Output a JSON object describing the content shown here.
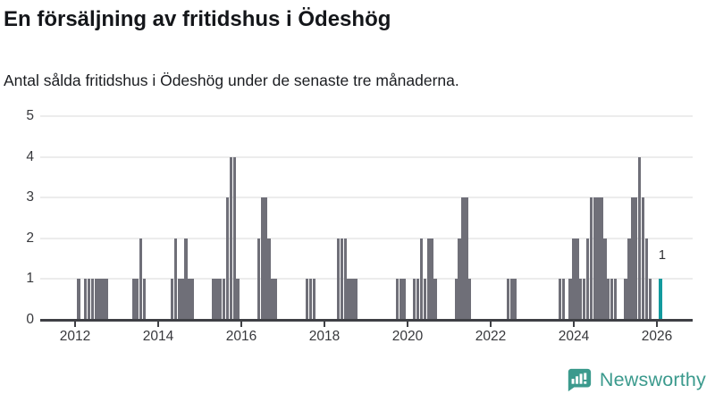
{
  "header": {
    "title": "En försäljning av fritidshus i Ödeshög",
    "subtitle": "Antal sålda fritidshus i Ödeshög under de senaste tre månaderna."
  },
  "chart_data": {
    "type": "bar",
    "title": "En försäljning av fritidshus i Ödeshög",
    "subtitle": "Antal sålda fritidshus i Ödeshög under de senaste tre månaderna.",
    "frequency": "monthly",
    "xlabel": "",
    "ylabel": "",
    "ylim": [
      0,
      5
    ],
    "yticks": [
      0,
      1,
      2,
      3,
      4,
      5
    ],
    "xticks": [
      2012,
      2014,
      2016,
      2020,
      2018,
      2022,
      2024,
      2026
    ],
    "grid": "horizontal",
    "legend": "none",
    "bar_color": "#6F6F78",
    "highlight_color": "#129A9E",
    "highlight_date": "2026-02",
    "annotation": {
      "text": "1",
      "date": "2026-02",
      "value": 1
    },
    "series": [
      [
        "2012-02",
        1
      ],
      [
        "2012-04",
        1
      ],
      [
        "2012-05",
        1
      ],
      [
        "2012-06",
        1
      ],
      [
        "2012-07",
        1
      ],
      [
        "2012-08",
        1
      ],
      [
        "2012-09",
        1
      ],
      [
        "2012-10",
        1
      ],
      [
        "2013-06",
        1
      ],
      [
        "2013-07",
        1
      ],
      [
        "2013-08",
        2
      ],
      [
        "2013-09",
        1
      ],
      [
        "2014-05",
        1
      ],
      [
        "2014-06",
        2
      ],
      [
        "2014-07",
        1
      ],
      [
        "2014-08",
        1
      ],
      [
        "2014-09",
        2
      ],
      [
        "2014-10",
        1
      ],
      [
        "2014-11",
        1
      ],
      [
        "2015-05",
        1
      ],
      [
        "2015-06",
        1
      ],
      [
        "2015-07",
        1
      ],
      [
        "2015-08",
        1
      ],
      [
        "2015-09",
        3
      ],
      [
        "2015-10",
        4
      ],
      [
        "2015-11",
        4
      ],
      [
        "2015-12",
        1
      ],
      [
        "2016-06",
        2
      ],
      [
        "2016-07",
        3
      ],
      [
        "2016-08",
        3
      ],
      [
        "2016-09",
        2
      ],
      [
        "2016-10",
        1
      ],
      [
        "2016-11",
        1
      ],
      [
        "2017-08",
        1
      ],
      [
        "2017-09",
        1
      ],
      [
        "2017-10",
        1
      ],
      [
        "2018-05",
        2
      ],
      [
        "2018-06",
        2
      ],
      [
        "2018-07",
        2
      ],
      [
        "2018-08",
        1
      ],
      [
        "2018-09",
        1
      ],
      [
        "2018-10",
        1
      ],
      [
        "2019-10",
        1
      ],
      [
        "2019-11",
        1
      ],
      [
        "2019-12",
        1
      ],
      [
        "2020-03",
        1
      ],
      [
        "2020-04",
        1
      ],
      [
        "2020-05",
        2
      ],
      [
        "2020-06",
        1
      ],
      [
        "2020-07",
        2
      ],
      [
        "2020-08",
        2
      ],
      [
        "2020-09",
        1
      ],
      [
        "2021-03",
        1
      ],
      [
        "2021-04",
        2
      ],
      [
        "2021-05",
        3
      ],
      [
        "2021-06",
        3
      ],
      [
        "2021-07",
        1
      ],
      [
        "2022-06",
        1
      ],
      [
        "2022-07",
        1
      ],
      [
        "2022-08",
        1
      ],
      [
        "2023-09",
        1
      ],
      [
        "2023-10",
        1
      ],
      [
        "2023-12",
        1
      ],
      [
        "2024-01",
        2
      ],
      [
        "2024-02",
        2
      ],
      [
        "2024-03",
        1
      ],
      [
        "2024-04",
        1
      ],
      [
        "2024-05",
        2
      ],
      [
        "2024-06",
        3
      ],
      [
        "2024-07",
        3
      ],
      [
        "2024-08",
        3
      ],
      [
        "2024-09",
        3
      ],
      [
        "2024-10",
        2
      ],
      [
        "2024-11",
        1
      ],
      [
        "2024-12",
        1
      ],
      [
        "2025-01",
        1
      ],
      [
        "2025-04",
        1
      ],
      [
        "2025-05",
        2
      ],
      [
        "2025-06",
        3
      ],
      [
        "2025-07",
        3
      ],
      [
        "2025-08",
        4
      ],
      [
        "2025-09",
        3
      ],
      [
        "2025-10",
        2
      ],
      [
        "2025-11",
        1
      ],
      [
        "2026-02",
        1
      ]
    ]
  },
  "footer": {
    "brand": "Newsworthy",
    "brand_color": "#3B9A8D",
    "icon": "newsworthy-speech-bubble-chart-icon"
  }
}
